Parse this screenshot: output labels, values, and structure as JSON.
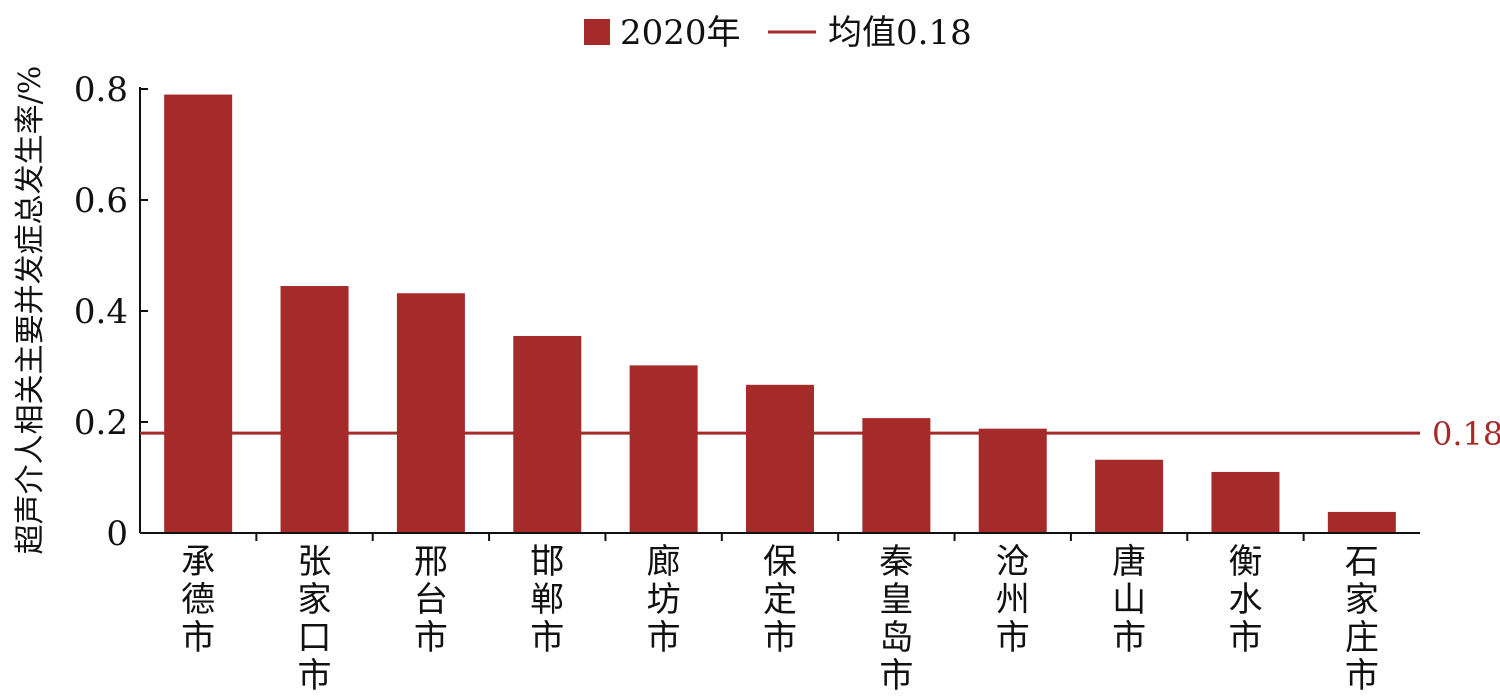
{
  "chart_data": {
    "type": "bar",
    "categories": [
      "承德市",
      "张家口市",
      "邢台市",
      "邯郸市",
      "廊坊市",
      "保定市",
      "秦皇岛市",
      "沧州市",
      "唐山市",
      "衡水市",
      "石家庄市"
    ],
    "series": [
      {
        "name": "2020年",
        "values": [
          0.79,
          0.445,
          0.432,
          0.355,
          0.302,
          0.267,
          0.207,
          0.188,
          0.132,
          0.11,
          0.038
        ],
        "color": "#A52A2A"
      }
    ],
    "reference_line": {
      "legend_label": "均值0.18",
      "value": 0.18,
      "label": "0.18",
      "color": "#A52A2A"
    },
    "ylabel": "超声介人相关主要并发症总发生率/%",
    "xlabel": "",
    "ylim": [
      0,
      0.8
    ],
    "yticks": [
      0,
      0.2,
      0.4,
      0.6,
      0.8
    ],
    "ytick_labels": [
      "0",
      "0.2",
      "0.4",
      "0.6",
      "0.8"
    ],
    "legend_position": "top-center",
    "grid": false
  }
}
